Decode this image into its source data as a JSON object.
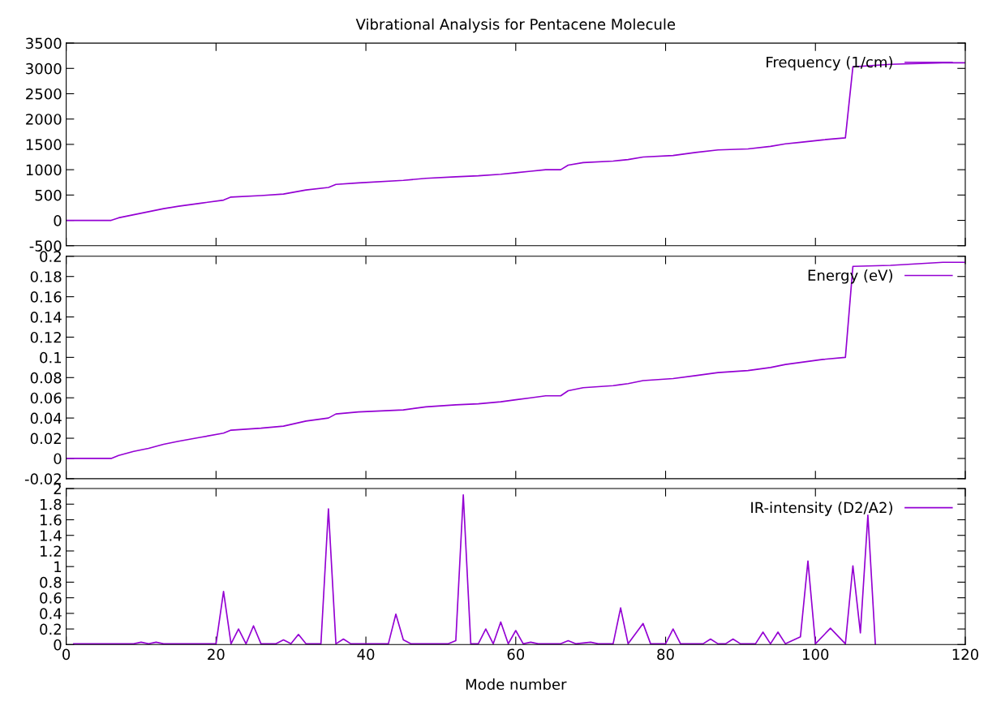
{
  "chart_data": [
    {
      "type": "line",
      "title": "Vibrational Analysis for Pentacene Molecule",
      "xlim": [
        0,
        120
      ],
      "xticks": [
        0,
        20,
        40,
        60,
        80,
        100,
        120
      ],
      "ylim": [
        -500,
        3500
      ],
      "yticks": [
        -500,
        0,
        500,
        1000,
        1500,
        2000,
        2500,
        3000,
        3500
      ],
      "tick_labels": "y",
      "legend": "top right",
      "grid": false,
      "marker": "none",
      "line_style": "solid",
      "series": [
        {
          "name": "Frequency (1/cm)",
          "color": "#9400d3",
          "x": [
            0,
            6,
            7,
            9,
            11,
            13,
            15,
            18,
            21,
            22,
            26,
            29,
            32,
            35,
            36,
            39,
            45,
            48,
            52,
            55,
            58,
            60,
            62,
            64,
            66,
            67,
            69,
            73,
            75,
            77,
            81,
            84,
            87,
            91,
            94,
            96,
            98,
            101,
            104,
            105,
            110,
            117,
            120
          ],
          "values": [
            0,
            0,
            50,
            110,
            170,
            230,
            280,
            340,
            400,
            460,
            490,
            520,
            600,
            650,
            710,
            740,
            790,
            830,
            860,
            880,
            910,
            940,
            970,
            1000,
            1000,
            1090,
            1140,
            1170,
            1200,
            1250,
            1280,
            1340,
            1390,
            1410,
            1460,
            1510,
            1540,
            1590,
            1630,
            3030,
            3080,
            3110,
            3110
          ]
        }
      ]
    },
    {
      "type": "line",
      "xlim": [
        0,
        120
      ],
      "xticks": [
        0,
        20,
        40,
        60,
        80,
        100,
        120
      ],
      "ylim": [
        -0.02,
        0.2
      ],
      "yticks": [
        -0.02,
        0,
        0.02,
        0.04,
        0.06,
        0.08,
        0.1,
        0.12,
        0.14,
        0.16,
        0.18,
        0.2
      ],
      "tick_labels": "y",
      "legend": "top right",
      "grid": false,
      "marker": "none",
      "line_style": "solid",
      "series": [
        {
          "name": "Energy (eV)",
          "color": "#9400d3",
          "x": [
            0,
            6,
            7,
            9,
            11,
            13,
            15,
            18,
            21,
            22,
            26,
            29,
            32,
            35,
            36,
            39,
            45,
            48,
            52,
            55,
            58,
            60,
            62,
            64,
            66,
            67,
            69,
            73,
            75,
            77,
            81,
            84,
            87,
            91,
            94,
            96,
            98,
            101,
            104,
            105,
            110,
            117,
            120
          ],
          "values": [
            0,
            0,
            0.003,
            0.007,
            0.01,
            0.014,
            0.017,
            0.021,
            0.025,
            0.028,
            0.03,
            0.032,
            0.037,
            0.04,
            0.044,
            0.046,
            0.048,
            0.051,
            0.053,
            0.054,
            0.056,
            0.058,
            0.06,
            0.062,
            0.062,
            0.067,
            0.07,
            0.072,
            0.074,
            0.077,
            0.079,
            0.082,
            0.085,
            0.087,
            0.09,
            0.093,
            0.095,
            0.098,
            0.1,
            0.19,
            0.191,
            0.194,
            0.194
          ]
        }
      ]
    },
    {
      "type": "line",
      "xlabel": "Mode number",
      "xlim": [
        0,
        120
      ],
      "xticks": [
        0,
        20,
        40,
        60,
        80,
        100,
        120
      ],
      "ylim": [
        0,
        2
      ],
      "yticks": [
        0,
        0.2,
        0.4,
        0.6,
        0.8,
        1,
        1.2,
        1.4,
        1.6,
        1.8,
        2
      ],
      "legend": "top right",
      "grid": false,
      "marker": "none",
      "line_style": "solid",
      "series": [
        {
          "name": "IR-intensity (D2/A2)",
          "color": "#9400d3",
          "x": [
            1,
            9,
            10,
            11,
            12,
            13,
            20,
            21,
            22,
            23,
            24,
            25,
            26,
            28,
            29,
            30,
            31,
            32,
            34,
            35,
            36,
            37,
            38,
            43,
            44,
            45,
            46,
            51,
            52,
            53,
            54,
            55,
            56,
            57,
            58,
            59,
            60,
            61,
            62,
            63,
            66,
            67,
            68,
            70,
            71,
            73,
            74,
            75,
            77,
            78,
            80,
            81,
            82,
            85,
            86,
            87,
            88,
            89,
            90,
            92,
            93,
            94,
            95,
            96,
            98,
            99,
            100,
            102,
            104,
            105,
            106,
            107,
            108
          ],
          "values": [
            0.01,
            0.01,
            0.03,
            0.01,
            0.03,
            0.01,
            0.01,
            0.68,
            0.01,
            0.2,
            0.01,
            0.24,
            0.01,
            0.01,
            0.06,
            0.01,
            0.13,
            0.01,
            0.01,
            1.74,
            0.01,
            0.07,
            0.01,
            0.01,
            0.39,
            0.06,
            0.01,
            0.01,
            0.05,
            1.92,
            0.01,
            0.01,
            0.2,
            0.01,
            0.29,
            0.01,
            0.18,
            0.01,
            0.03,
            0.01,
            0.01,
            0.05,
            0.01,
            0.03,
            0.01,
            0.01,
            0.47,
            0.01,
            0.27,
            0.01,
            0.01,
            0.2,
            0.01,
            0.01,
            0.07,
            0.01,
            0.01,
            0.07,
            0.01,
            0.01,
            0.16,
            0.01,
            0.16,
            0.01,
            0.1,
            1.07,
            0.01,
            0.21,
            0.01,
            1.01,
            0.15,
            1.66,
            0
          ]
        }
      ]
    }
  ]
}
